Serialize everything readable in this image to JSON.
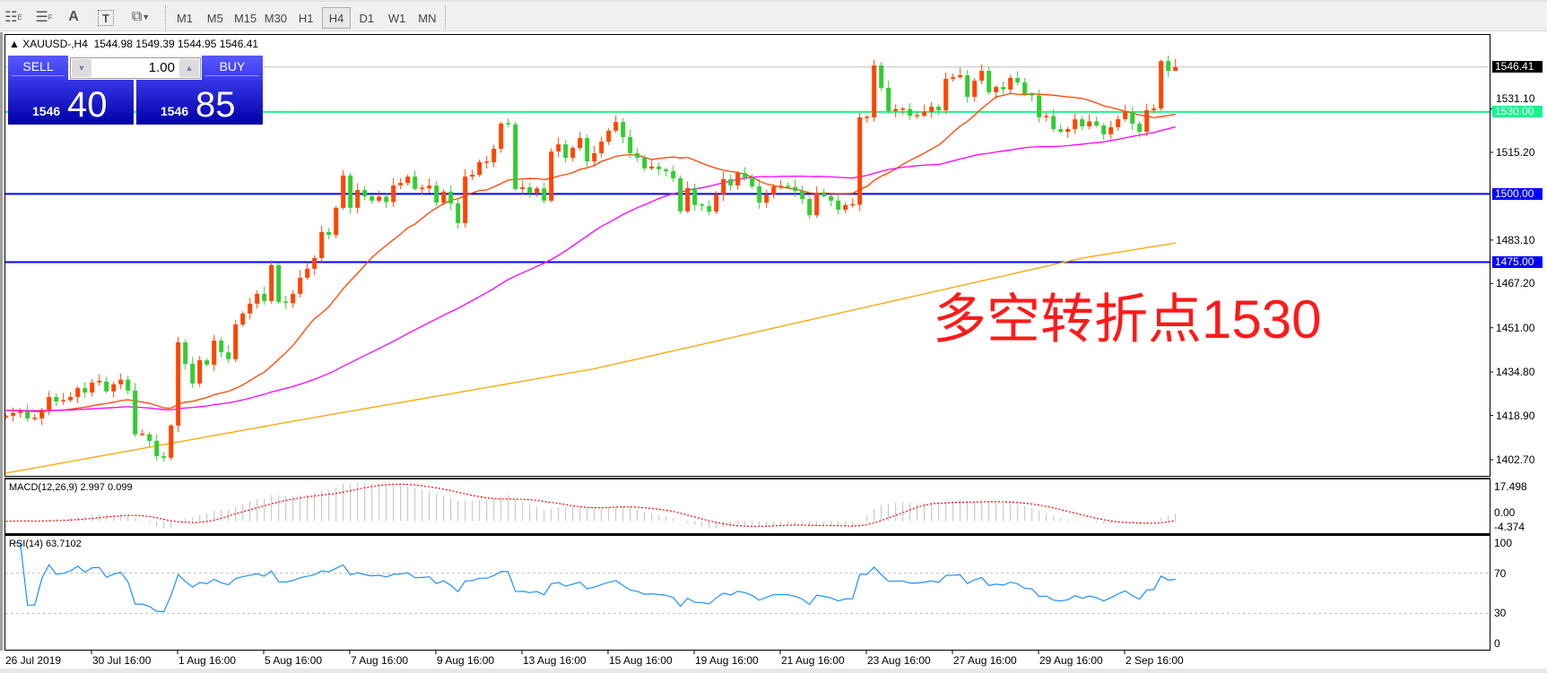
{
  "toolbar": {
    "icons": [
      "elliott-wave-icon",
      "fibonacci-icon",
      "text-icon",
      "text-label-icon",
      "arrows-icon"
    ],
    "timeframes": [
      "M1",
      "M5",
      "M15",
      "M30",
      "H1",
      "H4",
      "D1",
      "W1",
      "MN"
    ],
    "selected_timeframe": "H4"
  },
  "chart": {
    "symbol": "XAUUSD-,H4",
    "ohlc_text": "1544.98 1549.39 1544.95 1546.41",
    "annotation": "多空转折点1530",
    "colors": {
      "up": "#ff4500",
      "down": "#32cd32",
      "ma_fast": "#ff4500",
      "ma_mid": "#ff00ff",
      "ma_slow": "#ffa500",
      "level_green": "#19f58c",
      "level_blue": "#0000ff",
      "price_line": "#c0c0c0"
    }
  },
  "trade_panel": {
    "sell_label": "SELL",
    "buy_label": "BUY",
    "lot": "1.00",
    "sell_price_small": "1546",
    "sell_price_big": "40",
    "buy_price_small": "1546",
    "buy_price_big": "85"
  },
  "price_axis": {
    "ticks": [
      "1531.10",
      "1515.20",
      "1483.10",
      "1467.20",
      "1451.00",
      "1434.80",
      "1418.90",
      "1402.70"
    ],
    "tags": [
      {
        "text": "1546.41",
        "color": "#000000"
      },
      {
        "text": "1530.00",
        "color": "#19f58c"
      },
      {
        "text": "1500.00",
        "color": "#0000ff"
      },
      {
        "text": "1475.00",
        "color": "#0000ff"
      }
    ]
  },
  "macd": {
    "label": "MACD(12,26,9) 2.997 0.099",
    "max_label": "17.498",
    "zero_label": "0.00",
    "min_label": "-4.374"
  },
  "rsi": {
    "label": "RSI(14) 63.7102",
    "levels": [
      "100",
      "70",
      "30",
      "0"
    ]
  },
  "time_axis": [
    "26 Jul 2019",
    "30 Jul 16:00",
    "1 Aug 16:00",
    "5 Aug 16:00",
    "7 Aug 16:00",
    "9 Aug 16:00",
    "13 Aug 16:00",
    "15 Aug 16:00",
    "19 Aug 16:00",
    "21 Aug 16:00",
    "23 Aug 16:00",
    "27 Aug 16:00",
    "29 Aug 16:00",
    "2 Sep 16:00"
  ],
  "chart_data": {
    "type": "candlestick",
    "ylim": [
      1396.8,
      1558.15
    ],
    "grid": false,
    "levels": [
      1530.0,
      1500.0,
      1475.0
    ],
    "current_price": 1546.41,
    "last_bar": {
      "open": 1544.98,
      "high": 1549.39,
      "low": 1544.95,
      "close": 1546.41
    },
    "close": [
      1418.8,
      1419.8,
      1420.4,
      1417.8,
      1417.8,
      1421,
      1425.7,
      1424,
      1424.5,
      1425.7,
      1428.9,
      1427.3,
      1430.9,
      1431.3,
      1427.7,
      1430.3,
      1432,
      1428,
      1412,
      1412,
      1409.6,
      1404,
      1403.4,
      1415.2,
      1445.7,
      1437.8,
      1430.6,
      1439.1,
      1437.5,
      1446.3,
      1442,
      1439.5,
      1452.2,
      1456.2,
      1459.8,
      1463.4,
      1460.8,
      1473.9,
      1460.4,
      1460,
      1463.4,
      1469.3,
      1472.6,
      1476.5,
      1486,
      1485,
      1494.9,
      1506.7,
      1494.9,
      1501.4,
      1499.1,
      1497.5,
      1499,
      1497,
      1503.1,
      1504,
      1506.3,
      1501.8,
      1502,
      1503,
      1496.8,
      1500.8,
      1496.5,
      1489.3,
      1506.3,
      1507,
      1511.6,
      1511.6,
      1516.5,
      1525.7,
      1525.4,
      1501.8,
      1502.4,
      1500.4,
      1502,
      1497.5,
      1515.5,
      1518.1,
      1513.2,
      1516.8,
      1520.4,
      1511.9,
      1514.9,
      1519.1,
      1523.1,
      1526.3,
      1520.8,
      1514.9,
      1513.2,
      1509.3,
      1510,
      1509,
      1508.3,
      1505.7,
      1493.6,
      1502.1,
      1495.9,
      1495.5,
      1493.5,
      1499.8,
      1505.4,
      1503.1,
      1507.6,
      1506,
      1502.7,
      1496.8,
      1499.8,
      1502.7,
      1502.7,
      1502.5,
      1501.1,
      1498.1,
      1492.2,
      1500.4,
      1499.1,
      1497.5,
      1494.2,
      1495.9,
      1496,
      1528,
      1528,
      1547,
      1538.8,
      1530.3,
      1531,
      1531,
      1528.6,
      1528.6,
      1530,
      1531.9,
      1530.6,
      1542.1,
      1542.7,
      1543.4,
      1535.5,
      1541.4,
      1545,
      1537.2,
      1539.1,
      1538.2,
      1542.4,
      1540.8,
      1536.5,
      1536,
      1528,
      1528.5,
      1523.7,
      1522.7,
      1523.7,
      1527.3,
      1524.7,
      1526.5,
      1525,
      1521.8,
      1524.4,
      1527.3,
      1529.9,
      1525.7,
      1522.7,
      1530.6,
      1531.2,
      1548.6,
      1544.98,
      1546.41
    ],
    "ma_slow_points": [
      [
        0,
        1397.8
      ],
      [
        40,
        1416.8
      ],
      [
        82,
        1436
      ],
      [
        150,
        1476.5
      ],
      [
        163,
        1482
      ]
    ],
    "macd_range": [
      -4.374,
      17.498
    ],
    "rsi_range": [
      0,
      100
    ],
    "rsi_levels": [
      70,
      30
    ]
  }
}
